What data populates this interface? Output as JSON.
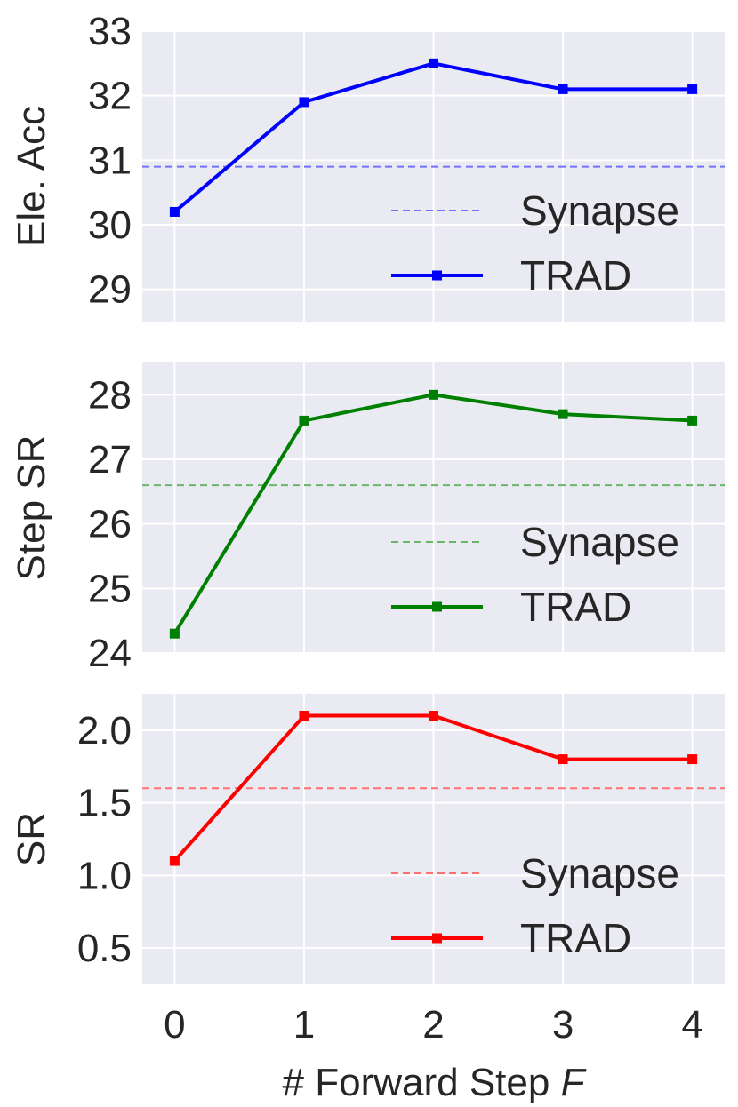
{
  "chart_data": [
    {
      "type": "line",
      "ylabel": "Ele. Acc",
      "ylim": [
        28.5,
        33
      ],
      "yticks": [
        "29",
        "30",
        "31",
        "32",
        "33"
      ],
      "x": [
        0,
        1,
        2,
        3,
        4
      ],
      "baseline": {
        "name": "Synapse",
        "value": 30.9,
        "style": "dashed"
      },
      "series": [
        {
          "name": "TRAD",
          "values": [
            30.2,
            31.9,
            32.5,
            32.1,
            32.1
          ]
        }
      ],
      "color": "#0000ff",
      "baseline_color": "#7070ff",
      "legend_position": "lower-right",
      "grid": true
    },
    {
      "type": "line",
      "ylabel": "Step SR",
      "ylim": [
        24,
        28.5
      ],
      "yticks": [
        "24",
        "25",
        "26",
        "27",
        "28"
      ],
      "x": [
        0,
        1,
        2,
        3,
        4
      ],
      "baseline": {
        "name": "Synapse",
        "value": 26.6,
        "style": "dashed"
      },
      "series": [
        {
          "name": "TRAD",
          "values": [
            24.3,
            27.6,
            28.0,
            27.7,
            27.6
          ]
        }
      ],
      "color": "#008000",
      "baseline_color": "#6ab56a",
      "legend_position": "lower-right",
      "grid": true
    },
    {
      "type": "line",
      "ylabel": "SR",
      "ylim": [
        0.25,
        2.25
      ],
      "yticks": [
        "0.5",
        "1.0",
        "1.5",
        "2.0"
      ],
      "x": [
        0,
        1,
        2,
        3,
        4
      ],
      "xticks": [
        "0",
        "1",
        "2",
        "3",
        "4"
      ],
      "xlabel": "# Forward Step ",
      "xlabel_var": "F",
      "baseline": {
        "name": "Synapse",
        "value": 1.6,
        "style": "dashed"
      },
      "series": [
        {
          "name": "TRAD",
          "values": [
            1.1,
            2.1,
            2.1,
            1.8,
            1.8
          ]
        }
      ],
      "color": "#ff0000",
      "baseline_color": "#ff7070",
      "legend_position": "lower-right",
      "grid": true
    }
  ]
}
